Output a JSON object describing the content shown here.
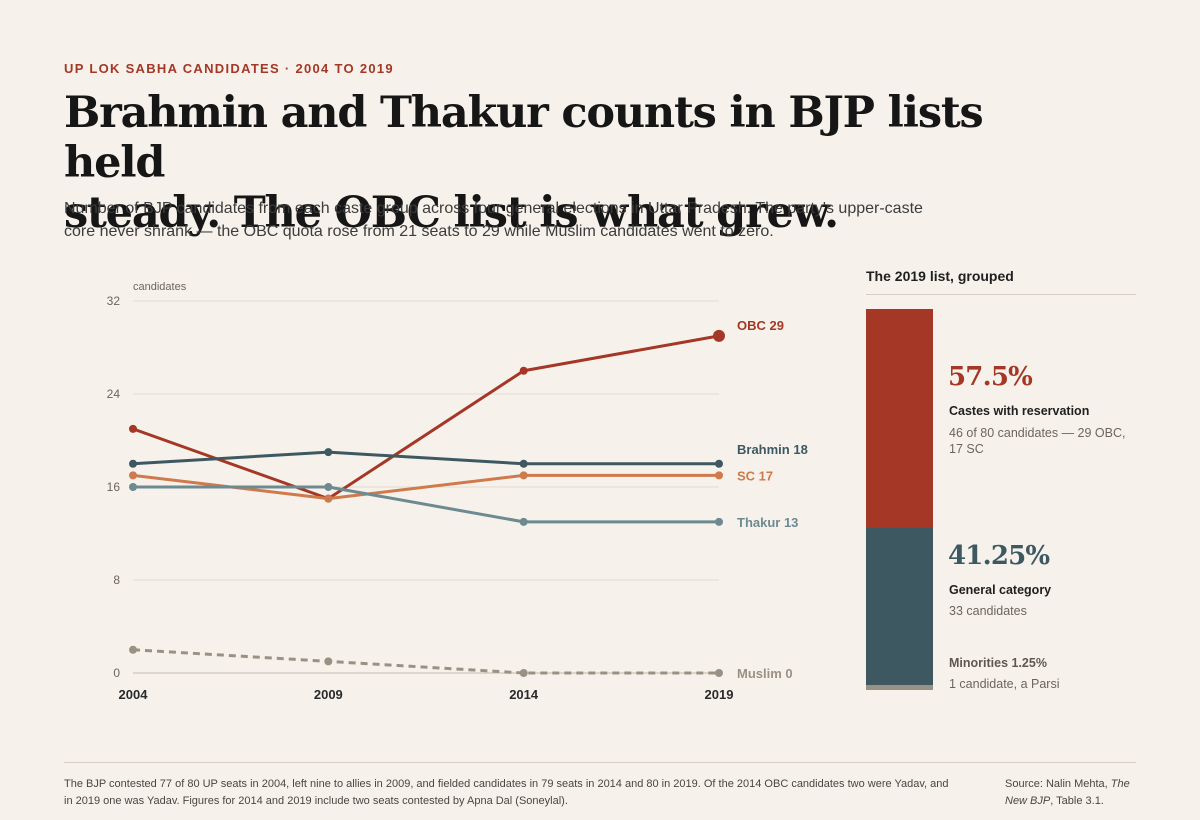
{
  "kicker": "UP LOK SABHA CANDIDATES · 2004 TO 2019",
  "headline": {
    "line1": "Brahmin and Thakur counts in BJP lists held",
    "line2": "steady. The OBC list is what grew."
  },
  "dek": "Number of BJP candidates from each caste group across four general elections in Uttar Pradesh. The party's upper-caste core never shrank — the OBC quota rose from 21 seats to 29 while Muslim candidates went to zero.",
  "colors": {
    "obc": "#a43726",
    "brahmin": "#3e5862",
    "sc": "#cf7a4c",
    "thakur": "#6d8a91",
    "muslim": "#999183",
    "grid": "#e2dcd1",
    "axis": "#d4cdc1"
  },
  "chart_data": {
    "type": "line",
    "ylabel": "candidates",
    "x": [
      "2004",
      "2009",
      "2014",
      "2019"
    ],
    "yticks": [
      0,
      8,
      16,
      24,
      32
    ],
    "ylim": [
      0,
      32
    ],
    "grid": true,
    "series": [
      {
        "key": "obc",
        "name": "OBC",
        "end_label": "OBC 29",
        "values": [
          21,
          15,
          26,
          29
        ],
        "color": "#a43726",
        "dashed": false
      },
      {
        "key": "brahmin",
        "name": "Brahmin",
        "end_label": "Brahmin 18",
        "values": [
          18,
          19,
          18,
          18
        ],
        "color": "#3e5862",
        "dashed": false
      },
      {
        "key": "sc",
        "name": "SC",
        "end_label": "SC 17",
        "values": [
          17,
          15,
          17,
          17
        ],
        "color": "#cf7a4c",
        "dashed": false
      },
      {
        "key": "thakur",
        "name": "Thakur",
        "end_label": "Thakur 13",
        "values": [
          16,
          16,
          13,
          13
        ],
        "color": "#6d8a91",
        "dashed": false
      },
      {
        "key": "muslim",
        "name": "Muslim",
        "end_label": "Muslim 0",
        "values": [
          2,
          1,
          0,
          0
        ],
        "color": "#999183",
        "dashed": true
      }
    ]
  },
  "side": {
    "title": "The 2019 list, grouped",
    "groups": [
      {
        "pct": "57.5%",
        "label": "Castes with reservation",
        "note": "46 of 80 candidates — 29 OBC, 17 SC",
        "value": 46,
        "color": "#a43726"
      },
      {
        "pct": "41.25%",
        "label": "General category",
        "note": "33 candidates",
        "value": 33,
        "color": "#3e5862"
      },
      {
        "label": "Minorities 1.25%",
        "note": "1 candidate, a Parsi",
        "value": 1,
        "color": "#999183"
      }
    ]
  },
  "footnote": "The BJP contested 77 of 80 UP seats in 2004, left nine to allies in 2009, and fielded candidates in 79 seats in 2014 and 80 in 2019. Of the 2014 OBC candidates two were Yadav, and in 2019 one was Yadav. Figures for 2014 and 2019 include two seats contested by Apna Dal (Soneylal).",
  "source": {
    "prefix": "Source:  Nalin Mehta, ",
    "title": "The New BJP",
    "suffix": ", Table 3.1."
  }
}
